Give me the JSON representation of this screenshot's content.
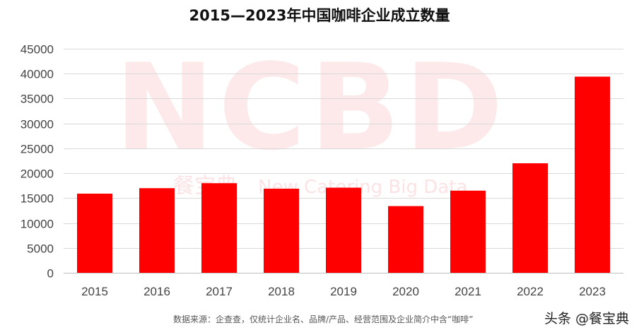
{
  "chart_data": {
    "type": "bar",
    "title": "2015—2023年中国咖啡企业成立数量",
    "categories": [
      "2015",
      "2016",
      "2017",
      "2018",
      "2019",
      "2020",
      "2021",
      "2022",
      "2023"
    ],
    "values": [
      15900,
      17000,
      18000,
      16900,
      17100,
      13400,
      16500,
      22000,
      39400
    ],
    "ylim": [
      0,
      45000
    ],
    "yticks": [
      0,
      5000,
      10000,
      15000,
      20000,
      25000,
      30000,
      35000,
      40000,
      45000
    ],
    "xlabel": "",
    "ylabel": "",
    "grid": true,
    "bar_color": "#ff0000"
  },
  "watermark": {
    "logo": "NCBD",
    "cn": "餐宝典",
    "en": "New Catering Big Data",
    "color": "#fde8ea"
  },
  "footnote": "数据来源：企查查，仅统计企业名、品牌/产品、经营范围及企业简介中含“咖啡”",
  "credit": "头条 @餐宝典"
}
